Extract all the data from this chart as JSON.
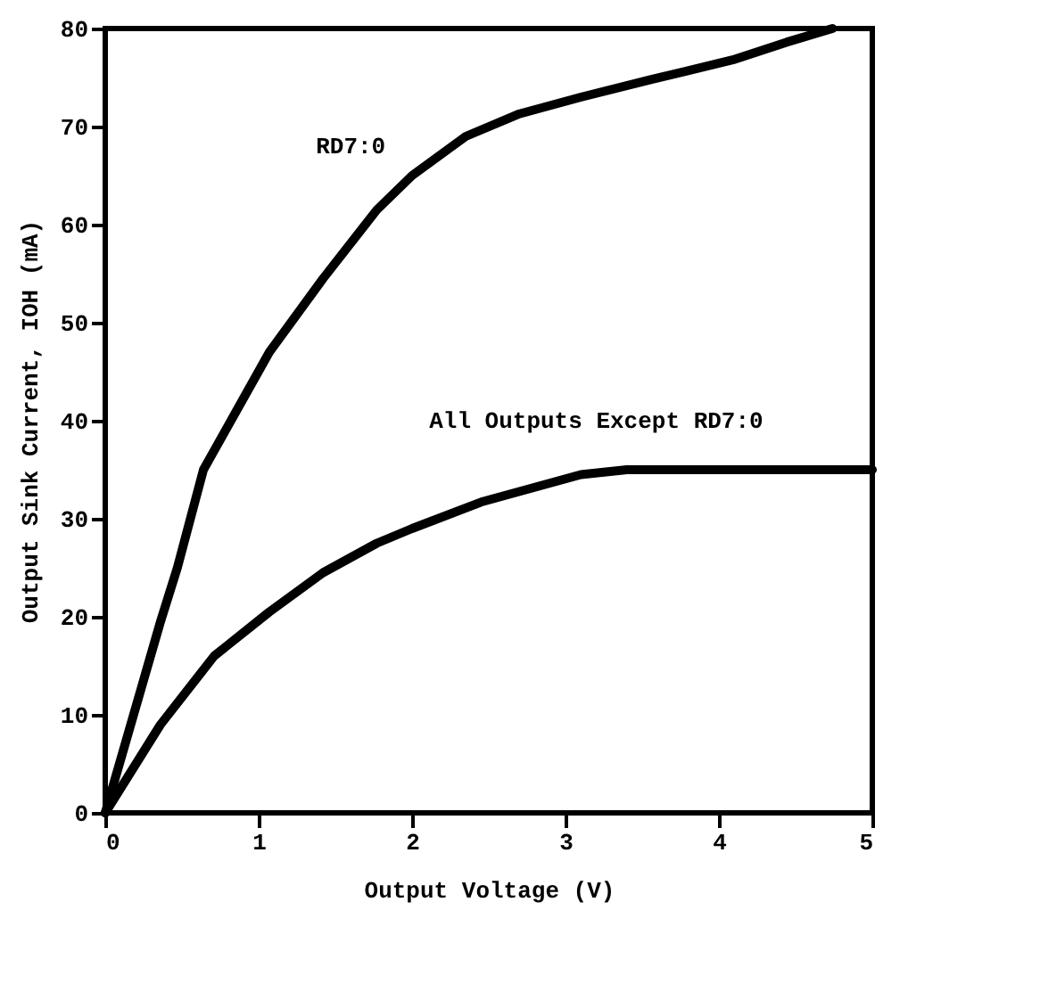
{
  "chart_data": {
    "type": "line",
    "xlabel": "Output Voltage (V)",
    "ylabel": "Output Sink Current, IOH (mA)",
    "xlim": [
      0,
      5
    ],
    "ylim": [
      0,
      80
    ],
    "xticks": [
      0,
      1,
      2,
      3,
      4,
      5
    ],
    "yticks": [
      0,
      10,
      20,
      30,
      40,
      50,
      60,
      70,
      80
    ],
    "grid": false,
    "marker": "none",
    "line_style": "solid",
    "series": [
      {
        "name": "RD7:0",
        "color": "#000000",
        "x": [
          0,
          0.36,
          0.47,
          0.64,
          1.07,
          1.42,
          1.77,
          2.0,
          2.35,
          2.7,
          3.1,
          3.56,
          4.09,
          4.44,
          4.74
        ],
        "values": [
          0,
          19.5,
          25,
          35,
          47,
          54.5,
          61.5,
          65,
          69,
          71.3,
          73,
          74.8,
          76.8,
          78.6,
          80
        ]
      },
      {
        "name": "All Outputs Except RD7:0",
        "color": "#000000",
        "x": [
          0,
          0.36,
          0.71,
          1.07,
          1.42,
          1.77,
          2.0,
          2.45,
          3.1,
          3.4,
          4.0,
          5.0
        ],
        "values": [
          0,
          9,
          16,
          20.5,
          24.5,
          27.5,
          29,
          31.7,
          34.5,
          35,
          35,
          35
        ]
      }
    ]
  }
}
